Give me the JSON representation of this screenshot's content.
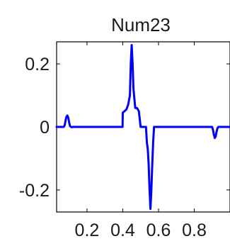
{
  "chart_data": {
    "type": "line",
    "title": "Num23",
    "xlabel": "",
    "ylabel": "",
    "xlim": [
      0.03,
      1.0
    ],
    "ylim": [
      -0.27,
      0.27
    ],
    "x_ticks": [
      0.2,
      0.4,
      0.6,
      0.8
    ],
    "x_tick_labels": [
      "0.2",
      "0.4",
      "0.6",
      "0.8"
    ],
    "y_ticks": [
      0.2,
      0,
      -0.2
    ],
    "y_tick_labels": [
      "0.2",
      "0",
      "-0.2"
    ],
    "grid": false,
    "legend": "none",
    "series": [
      {
        "color": "#0000ff",
        "x": [
          0.03,
          0.07,
          0.075,
          0.08,
          0.085,
          0.09,
          0.095,
          0.1,
          0.105,
          0.11,
          0.115,
          0.12,
          0.125,
          0.2,
          0.3,
          0.38,
          0.39,
          0.399,
          0.4,
          0.41,
          0.42,
          0.43,
          0.44,
          0.445,
          0.45,
          0.455,
          0.46,
          0.47,
          0.48,
          0.49,
          0.5,
          0.52,
          0.53,
          0.535,
          0.54,
          0.545,
          0.55,
          0.555,
          0.56,
          0.565,
          0.57,
          0.575,
          0.58,
          0.59,
          0.6,
          0.7,
          0.8,
          0.88,
          0.9,
          0.905,
          0.91,
          0.915,
          0.92,
          0.925,
          0.93,
          0.935,
          1.0
        ],
        "y": [
          0.0,
          0.0,
          0.005,
          0.02,
          0.032,
          0.036,
          0.03,
          0.014,
          0.003,
          0.0,
          -0.001,
          0.0,
          0.0,
          0.0,
          0.0,
          0.0,
          0.0,
          0.0,
          0.045,
          0.05,
          0.055,
          0.07,
          0.1,
          0.2,
          0.26,
          0.2,
          0.12,
          0.06,
          0.06,
          0.05,
          0.0,
          0.0,
          0.0,
          -0.05,
          -0.07,
          -0.12,
          -0.2,
          -0.26,
          -0.2,
          -0.12,
          -0.05,
          0.0,
          0.0,
          0.0,
          0.0,
          0.0,
          0.0,
          0.0,
          0.0,
          -0.01,
          -0.025,
          -0.035,
          -0.03,
          -0.015,
          -0.004,
          0.0,
          0.0
        ]
      }
    ]
  }
}
